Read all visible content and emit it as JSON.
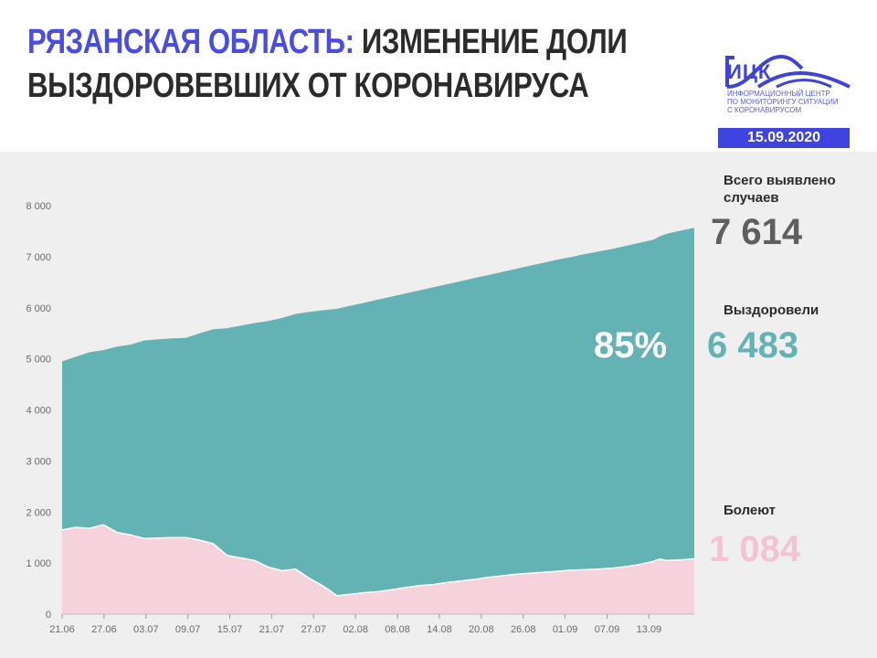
{
  "header": {
    "title_region": "Рязанская область:",
    "title_rest_line1": "изменение доли",
    "title_line2": "выздоровевших от коронавируса"
  },
  "logo": {
    "name": "ИЦК",
    "subtitle_lines": [
      "Информационный центр",
      "по мониторингу ситуации",
      "с коронавирусом"
    ]
  },
  "date": "15.09.2020",
  "stats": {
    "total_label": "Всего выявлено случаев",
    "total_value": "7 614",
    "recovered_label": "Выздоровели",
    "recovered_value": "6 483",
    "recovered_share": "85%",
    "sick_label": "Болеют",
    "sick_value": "1 084"
  },
  "colors": {
    "brand": "#4a4de0",
    "recovered": "#63b3b5",
    "sick": "#f6d2dc",
    "panel_bg": "#efefef",
    "total_text": "#5f5f5f",
    "recovered_text": "#63b3b5",
    "sick_text": "#f3c3d1"
  },
  "chart_data": {
    "type": "area",
    "x_tick_labels": [
      "21.06",
      "27.06",
      "03.07",
      "09.07",
      "15.07",
      "21.07",
      "27.07",
      "02.08",
      "08.08",
      "14.08",
      "20.08",
      "26.08",
      "01.09",
      "07.09",
      "13.09"
    ],
    "y_tick_labels": [
      "0",
      "1 000",
      "2 000",
      "3 000",
      "4 000",
      "5 000",
      "6 000",
      "7 000",
      "8 000"
    ],
    "ylim": [
      0,
      8000
    ],
    "grid": false,
    "stacked": true,
    "series": [
      {
        "name": "Болеют",
        "points": [
          [
            0,
            1650
          ],
          [
            2,
            1700
          ],
          [
            4,
            1680
          ],
          [
            6,
            1750
          ],
          [
            8,
            1600
          ],
          [
            10,
            1550
          ],
          [
            12,
            1480
          ],
          [
            14,
            1490
          ],
          [
            16,
            1500
          ],
          [
            18,
            1500
          ],
          [
            20,
            1450
          ],
          [
            22,
            1380
          ],
          [
            24,
            1150
          ],
          [
            26,
            1100
          ],
          [
            28,
            1050
          ],
          [
            30,
            920
          ],
          [
            32,
            850
          ],
          [
            34,
            880
          ],
          [
            36,
            700
          ],
          [
            38,
            550
          ],
          [
            40,
            360
          ],
          [
            42,
            390
          ],
          [
            44,
            420
          ],
          [
            46,
            440
          ],
          [
            48,
            480
          ],
          [
            50,
            520
          ],
          [
            52,
            560
          ],
          [
            54,
            580
          ],
          [
            56,
            620
          ],
          [
            58,
            650
          ],
          [
            60,
            680
          ],
          [
            62,
            720
          ],
          [
            64,
            750
          ],
          [
            66,
            780
          ],
          [
            68,
            800
          ],
          [
            70,
            820
          ],
          [
            72,
            840
          ],
          [
            74,
            860
          ],
          [
            76,
            870
          ],
          [
            78,
            880
          ],
          [
            80,
            900
          ],
          [
            82,
            930
          ],
          [
            84,
            970
          ],
          [
            86,
            1030
          ],
          [
            87,
            1080
          ],
          [
            88,
            1050
          ],
          [
            90,
            1060
          ],
          [
            92,
            1084
          ]
        ]
      },
      {
        "name": "Выздоровели",
        "points": [
          [
            0,
            3300
          ],
          [
            2,
            3340
          ],
          [
            4,
            3450
          ],
          [
            6,
            3420
          ],
          [
            8,
            3640
          ],
          [
            10,
            3730
          ],
          [
            12,
            3880
          ],
          [
            14,
            3890
          ],
          [
            16,
            3900
          ],
          [
            18,
            3910
          ],
          [
            20,
            4050
          ],
          [
            22,
            4200
          ],
          [
            24,
            4450
          ],
          [
            26,
            4550
          ],
          [
            28,
            4650
          ],
          [
            30,
            4820
          ],
          [
            32,
            4950
          ],
          [
            34,
            5000
          ],
          [
            36,
            5220
          ],
          [
            38,
            5400
          ],
          [
            40,
            5620
          ],
          [
            42,
            5650
          ],
          [
            44,
            5680
          ],
          [
            46,
            5720
          ],
          [
            48,
            5740
          ],
          [
            50,
            5760
          ],
          [
            52,
            5780
          ],
          [
            54,
            5820
          ],
          [
            56,
            5840
          ],
          [
            58,
            5870
          ],
          [
            60,
            5900
          ],
          [
            62,
            5920
          ],
          [
            64,
            5950
          ],
          [
            66,
            5980
          ],
          [
            68,
            6020
          ],
          [
            70,
            6060
          ],
          [
            72,
            6100
          ],
          [
            74,
            6130
          ],
          [
            76,
            6180
          ],
          [
            78,
            6220
          ],
          [
            80,
            6250
          ],
          [
            82,
            6280
          ],
          [
            84,
            6300
          ],
          [
            86,
            6300
          ],
          [
            87,
            6320
          ],
          [
            88,
            6400
          ],
          [
            90,
            6450
          ],
          [
            92,
            6483
          ]
        ]
      }
    ]
  }
}
